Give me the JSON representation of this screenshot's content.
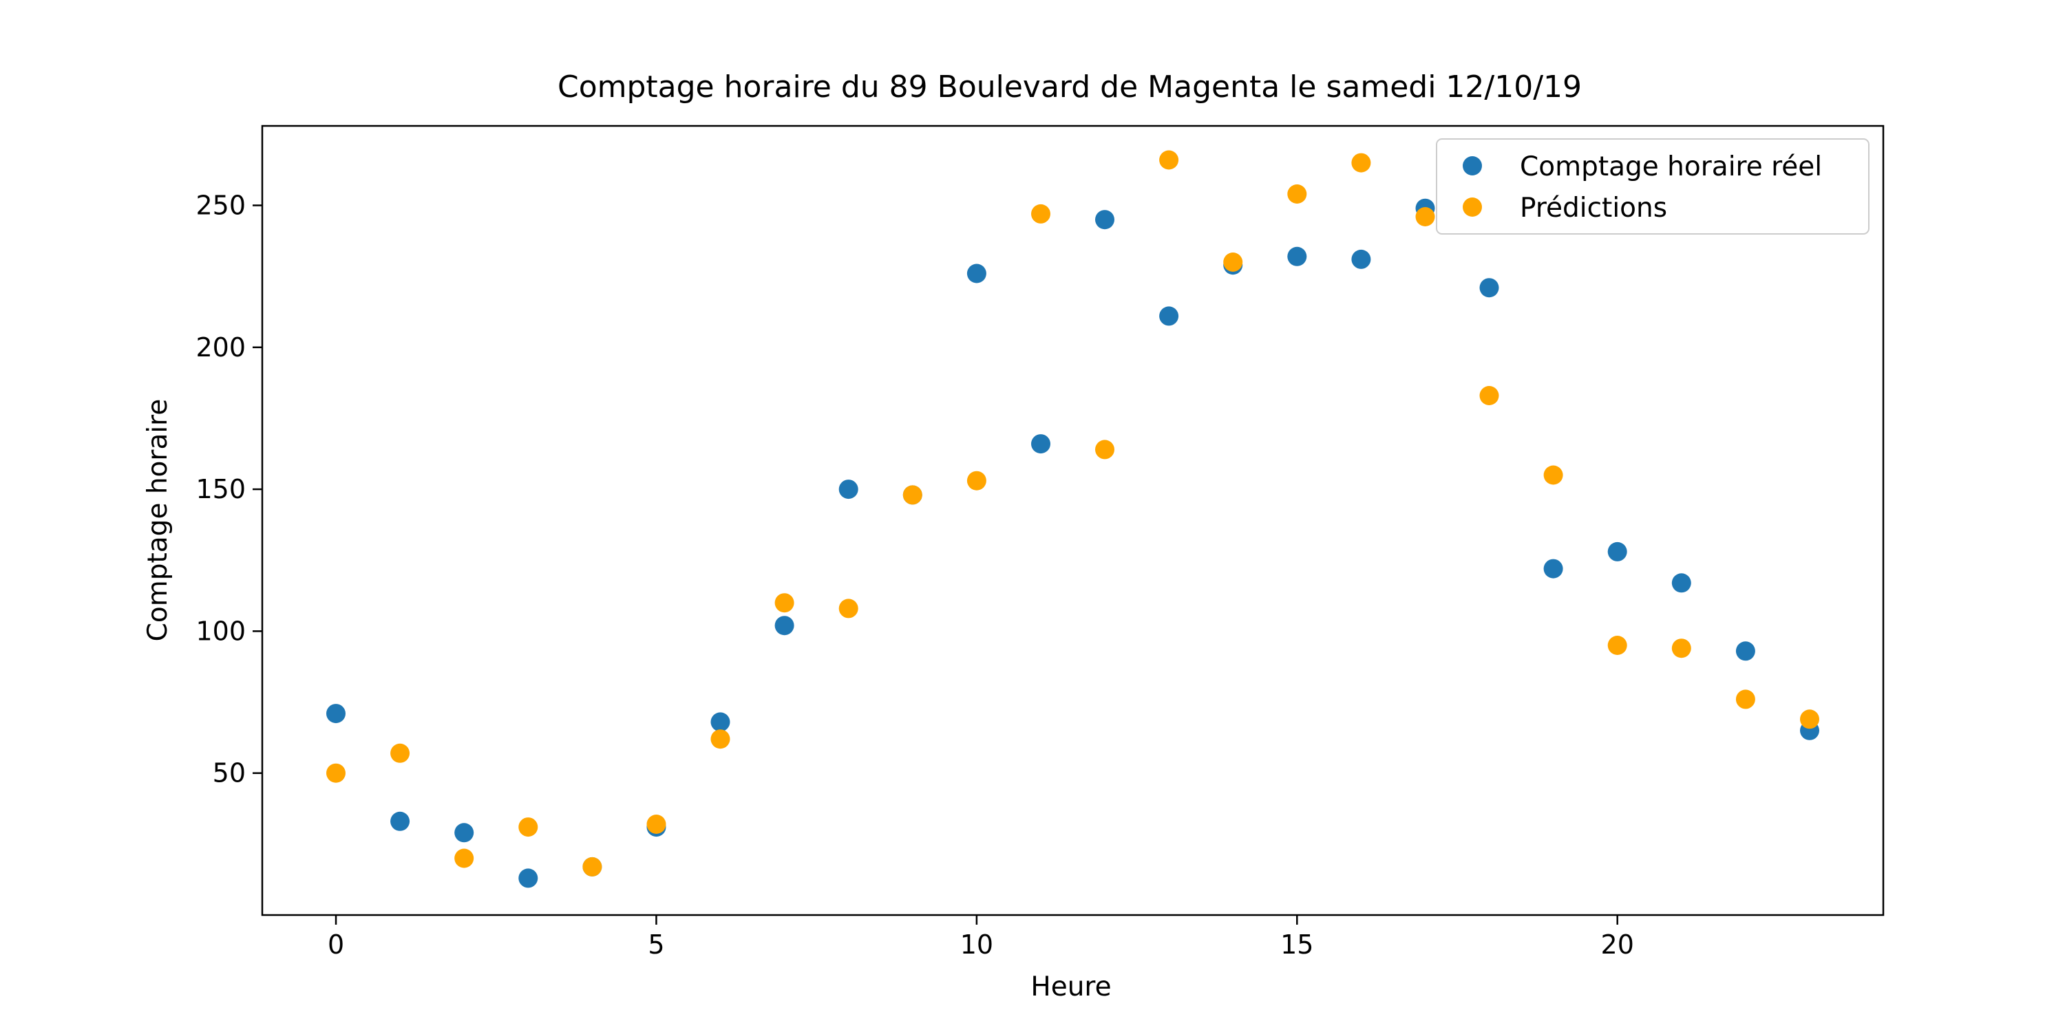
{
  "chart_data": {
    "type": "scatter",
    "title": "Comptage horaire du 89 Boulevard de Magenta le samedi 12/10/19",
    "xlabel": "Heure",
    "ylabel": "Comptage horaire",
    "xlim": [
      -1.15,
      24.15
    ],
    "ylim": [
      0,
      278
    ],
    "xticks": [
      0,
      5,
      10,
      15,
      20
    ],
    "yticks": [
      50,
      100,
      150,
      200,
      250
    ],
    "grid": false,
    "legend_position": "top-right",
    "x": [
      0,
      1,
      2,
      3,
      4,
      5,
      6,
      7,
      8,
      9,
      10,
      11,
      12,
      13,
      14,
      15,
      16,
      17,
      18,
      19,
      20,
      21,
      22,
      23
    ],
    "series": [
      {
        "name": "Comptage horaire réel",
        "color": "#1f77b4",
        "values": [
          71,
          33,
          29,
          13,
          17,
          31,
          68,
          102,
          150,
          148,
          226,
          166,
          245,
          211,
          229,
          232,
          231,
          249,
          221,
          122,
          128,
          117,
          93,
          65
        ]
      },
      {
        "name": "Prédictions",
        "color": "#ffa500",
        "values": [
          50,
          57,
          20,
          31,
          17,
          32,
          62,
          110,
          108,
          148,
          153,
          247,
          164,
          266,
          230,
          254,
          265,
          246,
          183,
          155,
          95,
          94,
          76,
          69
        ]
      }
    ]
  }
}
